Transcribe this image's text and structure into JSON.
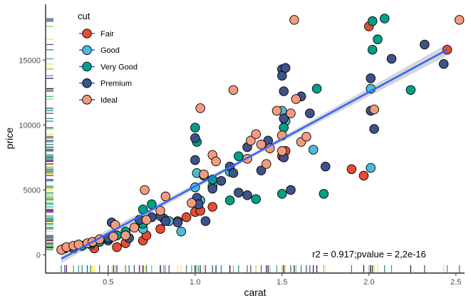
{
  "chart_data": {
    "type": "scatter",
    "xlabel": "carat",
    "ylabel": "price",
    "xlim": [
      0.14,
      2.55
    ],
    "ylim": [
      -1400,
      19300
    ],
    "x_ticks": [
      "0.5",
      "1.0",
      "1.5",
      "2.0",
      "2.5"
    ],
    "y_ticks": [
      "0",
      "5000",
      "10000",
      "15000"
    ],
    "grid": false,
    "legend": {
      "title": "cut",
      "placement": "top-left",
      "entries": [
        {
          "name": "Fair",
          "color": "#e64b35"
        },
        {
          "name": "Good",
          "color": "#4dbbd5"
        },
        {
          "name": "Very Good",
          "color": "#00a087"
        },
        {
          "name": "Premium",
          "color": "#3c5488"
        },
        {
          "name": "Ideal",
          "color": "#f39b7f"
        }
      ]
    },
    "annotation": "r2 = 0.917;pvalue = 2,2e-16",
    "regression": {
      "x_start": 0.23,
      "y_start": -300,
      "x_end": 2.45,
      "y_end": 15800,
      "line_color": "#3366ff",
      "band_color": "#c8c8c8"
    },
    "rug": {
      "x_position": "bottom",
      "y_position": "left",
      "colors": [
        "#f5e942",
        "#2a788e",
        "#440154",
        "#7ad151",
        "#22a884",
        "#414487"
      ]
    },
    "series": [
      {
        "name": "Fair",
        "points": [
          [
            0.42,
            500
          ],
          [
            0.55,
            600
          ],
          [
            0.6,
            900
          ],
          [
            0.7,
            1100
          ],
          [
            0.72,
            1500
          ],
          [
            0.8,
            2000
          ],
          [
            0.9,
            2600
          ],
          [
            0.95,
            2900
          ],
          [
            1.0,
            3300
          ],
          [
            1.03,
            3400
          ],
          [
            1.1,
            3700
          ],
          [
            1.5,
            7600
          ],
          [
            1.52,
            8000
          ],
          [
            1.9,
            6600
          ],
          [
            1.97,
            6100
          ],
          [
            2.0,
            17600
          ],
          [
            2.45,
            15800
          ]
        ]
      },
      {
        "name": "Good",
        "points": [
          [
            0.3,
            550
          ],
          [
            0.35,
            700
          ],
          [
            0.4,
            800
          ],
          [
            0.5,
            1100
          ],
          [
            0.6,
            1500
          ],
          [
            0.7,
            2000
          ],
          [
            0.85,
            2600
          ],
          [
            0.92,
            1800
          ],
          [
            1.0,
            5200
          ],
          [
            1.01,
            6300
          ],
          [
            1.03,
            4200
          ],
          [
            1.1,
            5300
          ],
          [
            1.2,
            6400
          ],
          [
            1.5,
            11100
          ],
          [
            1.52,
            10300
          ],
          [
            1.68,
            8100
          ],
          [
            2.01,
            6700
          ],
          [
            2.01,
            12800
          ]
        ]
      },
      {
        "name": "Very Good",
        "points": [
          [
            0.25,
            500
          ],
          [
            0.3,
            600
          ],
          [
            0.35,
            700
          ],
          [
            0.4,
            900
          ],
          [
            0.45,
            1000
          ],
          [
            0.5,
            1200
          ],
          [
            0.55,
            1500
          ],
          [
            0.6,
            1800
          ],
          [
            0.7,
            2400
          ],
          [
            0.7,
            3500
          ],
          [
            0.75,
            3900
          ],
          [
            0.82,
            2800
          ],
          [
            1.0,
            9800
          ],
          [
            1.01,
            8700
          ],
          [
            1.05,
            6100
          ],
          [
            1.1,
            5800
          ],
          [
            1.2,
            4200
          ],
          [
            1.25,
            7600
          ],
          [
            1.35,
            4300
          ],
          [
            1.5,
            4700
          ],
          [
            1.51,
            9800
          ],
          [
            1.7,
            12800
          ],
          [
            1.74,
            4700
          ],
          [
            2.02,
            15800
          ],
          [
            2.02,
            18000
          ],
          [
            2.05,
            16600
          ],
          [
            2.09,
            18200
          ],
          [
            2.24,
            12700
          ]
        ]
      },
      {
        "name": "Premium",
        "points": [
          [
            0.3,
            500
          ],
          [
            0.4,
            900
          ],
          [
            0.5,
            1300
          ],
          [
            0.52,
            2500
          ],
          [
            0.62,
            1300
          ],
          [
            0.68,
            2700
          ],
          [
            0.75,
            2900
          ],
          [
            0.8,
            3000
          ],
          [
            0.83,
            2600
          ],
          [
            0.9,
            2500
          ],
          [
            1.0,
            9000
          ],
          [
            1.0,
            7300
          ],
          [
            1.01,
            4400
          ],
          [
            1.02,
            3900
          ],
          [
            1.06,
            2600
          ],
          [
            1.1,
            5100
          ],
          [
            1.15,
            5700
          ],
          [
            1.2,
            6800
          ],
          [
            1.22,
            6300
          ],
          [
            1.25,
            4800
          ],
          [
            1.3,
            8300
          ],
          [
            1.3,
            4600
          ],
          [
            1.38,
            6500
          ],
          [
            1.42,
            8800
          ],
          [
            1.5,
            14300
          ],
          [
            1.5,
            13800
          ],
          [
            1.51,
            12600
          ],
          [
            1.52,
            14400
          ],
          [
            1.51,
            10500
          ],
          [
            1.51,
            7500
          ],
          [
            1.55,
            5000
          ],
          [
            1.61,
            12200
          ],
          [
            1.66,
            10900
          ],
          [
            1.75,
            6800
          ],
          [
            2.01,
            11100
          ],
          [
            2.01,
            13600
          ],
          [
            2.03,
            9700
          ],
          [
            2.13,
            15100
          ],
          [
            2.32,
            16200
          ],
          [
            2.43,
            14700
          ]
        ]
      },
      {
        "name": "Ideal",
        "points": [
          [
            0.23,
            400
          ],
          [
            0.26,
            600
          ],
          [
            0.3,
            700
          ],
          [
            0.33,
            800
          ],
          [
            0.38,
            900
          ],
          [
            0.41,
            1000
          ],
          [
            0.45,
            1200
          ],
          [
            0.53,
            1400
          ],
          [
            0.54,
            2300
          ],
          [
            0.6,
            1500
          ],
          [
            0.65,
            2100
          ],
          [
            0.71,
            5000
          ],
          [
            0.72,
            2700
          ],
          [
            0.8,
            3400
          ],
          [
            0.83,
            4500
          ],
          [
            0.98,
            4000
          ],
          [
            1.03,
            11300
          ],
          [
            1.05,
            6200
          ],
          [
            1.1,
            7700
          ],
          [
            1.12,
            7200
          ],
          [
            1.22,
            12700
          ],
          [
            1.3,
            7400
          ],
          [
            1.32,
            8800
          ],
          [
            1.35,
            9300
          ],
          [
            1.38,
            8500
          ],
          [
            1.41,
            7000
          ],
          [
            1.43,
            8200
          ],
          [
            1.47,
            11100
          ],
          [
            1.5,
            8000
          ],
          [
            1.5,
            9200
          ],
          [
            1.55,
            10900
          ],
          [
            1.57,
            18100
          ],
          [
            1.58,
            12000
          ],
          [
            1.61,
            8700
          ],
          [
            1.64,
            9100
          ],
          [
            2.03,
            11200
          ],
          [
            2.52,
            18100
          ]
        ]
      }
    ]
  }
}
